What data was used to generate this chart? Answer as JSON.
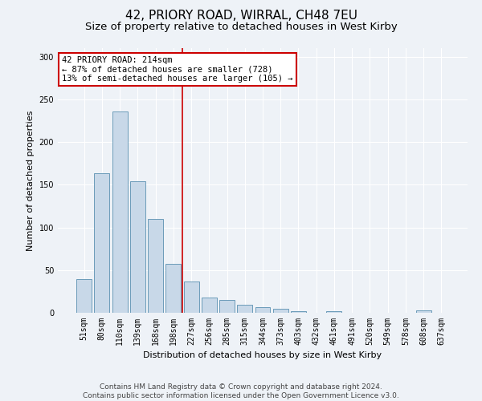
{
  "title": "42, PRIORY ROAD, WIRRAL, CH48 7EU",
  "subtitle": "Size of property relative to detached houses in West Kirby",
  "xlabel": "Distribution of detached houses by size in West Kirby",
  "ylabel": "Number of detached properties",
  "categories": [
    "51sqm",
    "80sqm",
    "110sqm",
    "139sqm",
    "168sqm",
    "198sqm",
    "227sqm",
    "256sqm",
    "285sqm",
    "315sqm",
    "344sqm",
    "373sqm",
    "403sqm",
    "432sqm",
    "461sqm",
    "491sqm",
    "520sqm",
    "549sqm",
    "578sqm",
    "608sqm",
    "637sqm"
  ],
  "values": [
    39,
    163,
    236,
    154,
    110,
    57,
    37,
    18,
    15,
    9,
    7,
    5,
    2,
    0,
    2,
    0,
    0,
    0,
    0,
    3,
    0
  ],
  "bar_color": "#c8d8e8",
  "bar_edge_color": "#5a90b0",
  "marker_line_color": "#cc0000",
  "annotation_line1": "42 PRIORY ROAD: 214sqm",
  "annotation_line2": "← 87% of detached houses are smaller (728)",
  "annotation_line3": "13% of semi-detached houses are larger (105) →",
  "annotation_box_color": "#ffffff",
  "annotation_box_edge_color": "#cc0000",
  "ylim": [
    0,
    310
  ],
  "yticks": [
    0,
    50,
    100,
    150,
    200,
    250,
    300
  ],
  "footer_line1": "Contains HM Land Registry data © Crown copyright and database right 2024.",
  "footer_line2": "Contains public sector information licensed under the Open Government Licence v3.0.",
  "bg_color": "#eef2f7",
  "plot_bg_color": "#eef2f7",
  "grid_color": "#ffffff",
  "title_fontsize": 11,
  "subtitle_fontsize": 9.5,
  "label_fontsize": 8,
  "tick_fontsize": 7,
  "footer_fontsize": 6.5,
  "annotation_fontsize": 7.5
}
